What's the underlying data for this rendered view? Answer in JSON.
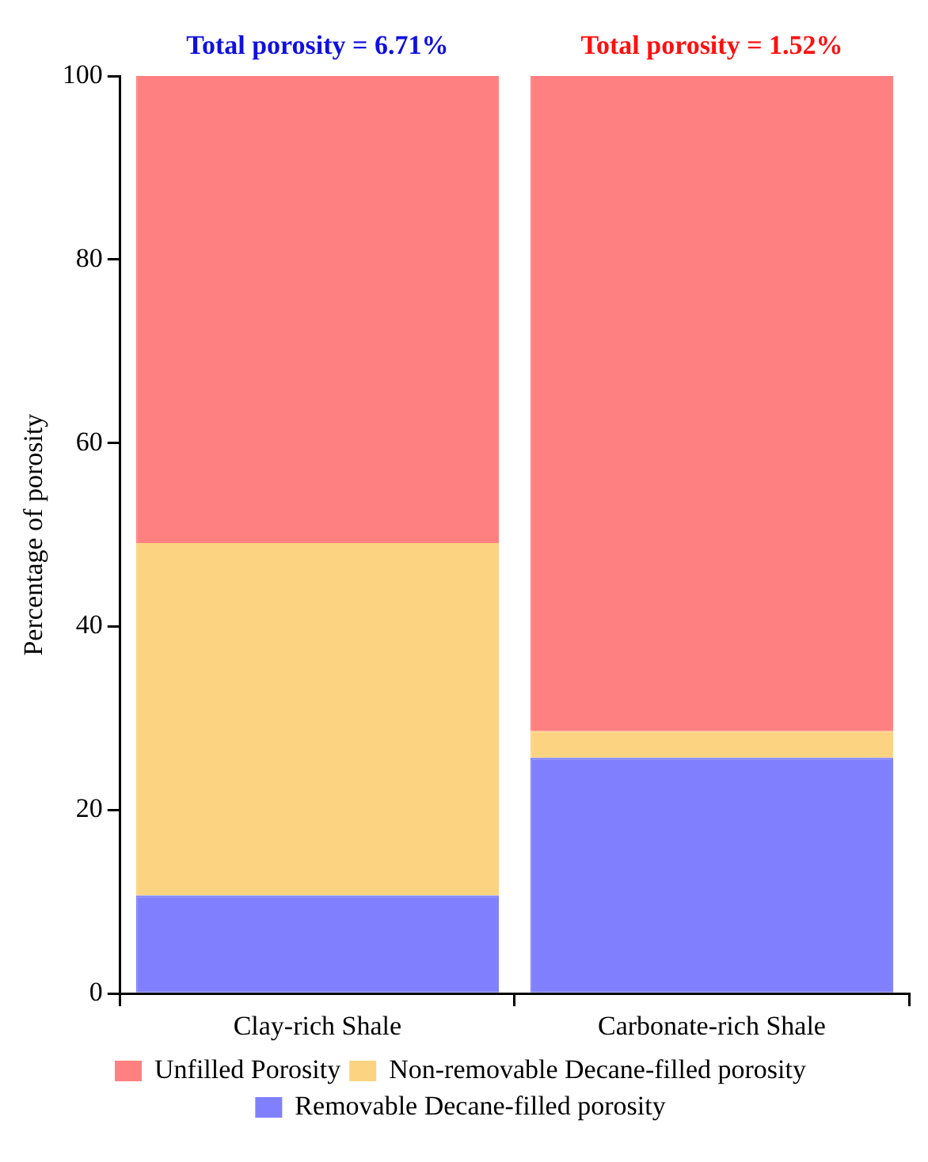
{
  "chart_data": {
    "type": "bar",
    "stacked": true,
    "ylabel": "Percentage of porosity",
    "categories": [
      "Clay-rich Shale",
      "Carbonate-rich Shale"
    ],
    "series": [
      {
        "name": "Removable Decane-filled porosity",
        "color": "#8080ff",
        "values": [
          10.7,
          25.7
        ]
      },
      {
        "name": "Non-removable Decane-filled porosity",
        "color": "#fcd381",
        "values": [
          38.4,
          2.9
        ]
      },
      {
        "name": "Unfilled Porosity",
        "color": "#ff8080",
        "values": [
          50.9,
          71.4
        ]
      }
    ],
    "ylim": [
      0,
      100
    ],
    "yticks": [
      0,
      20,
      40,
      60,
      80,
      100
    ],
    "grid": false,
    "legend": "bottom",
    "annotations": [
      {
        "text": "Total porosity = 6.71%",
        "x": "Clay-rich Shale",
        "y": 100
      },
      {
        "text": "Total porosity = 1.52%",
        "x": "Carbonate-rich Shale",
        "y": 100
      }
    ]
  }
}
